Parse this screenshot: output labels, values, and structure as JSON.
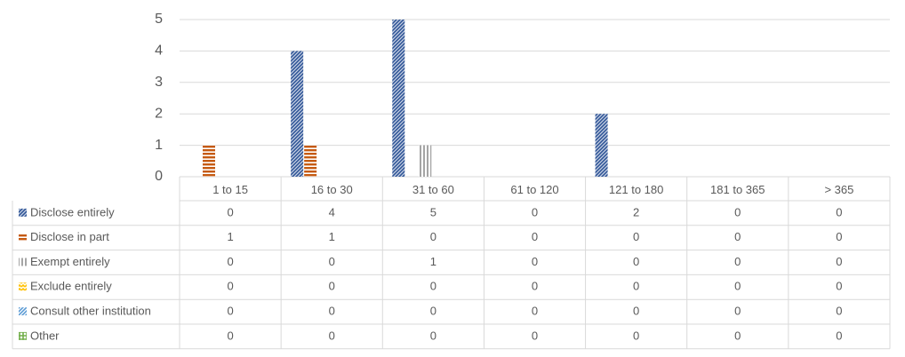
{
  "chart_data": {
    "type": "bar",
    "categories": [
      "1 to 15",
      "16 to 30",
      "31 to 60",
      "61 to 120",
      "121 to 180",
      "181 to 365",
      "> 365"
    ],
    "series": [
      {
        "name": "Disclose entirely",
        "color": "#2f5597",
        "values": [
          0,
          4,
          5,
          0,
          2,
          0,
          0
        ]
      },
      {
        "name": "Disclose in part",
        "color": "#c55a11",
        "values": [
          1,
          1,
          0,
          0,
          0,
          0,
          0
        ]
      },
      {
        "name": "Exempt entirely",
        "color": "#a5a5a5",
        "values": [
          0,
          0,
          1,
          0,
          0,
          0,
          0
        ]
      },
      {
        "name": "Exclude entirely",
        "color": "#ffc000",
        "values": [
          0,
          0,
          0,
          0,
          0,
          0,
          0
        ]
      },
      {
        "name": "Consult other institution",
        "color": "#5b9bd5",
        "values": [
          0,
          0,
          0,
          0,
          0,
          0,
          0
        ]
      },
      {
        "name": "Other",
        "color": "#70ad47",
        "values": [
          0,
          0,
          0,
          0,
          0,
          0,
          0
        ]
      }
    ],
    "ylim": [
      0,
      5
    ],
    "yticks": [
      0,
      1,
      2,
      3,
      4,
      5
    ],
    "grid": true
  }
}
